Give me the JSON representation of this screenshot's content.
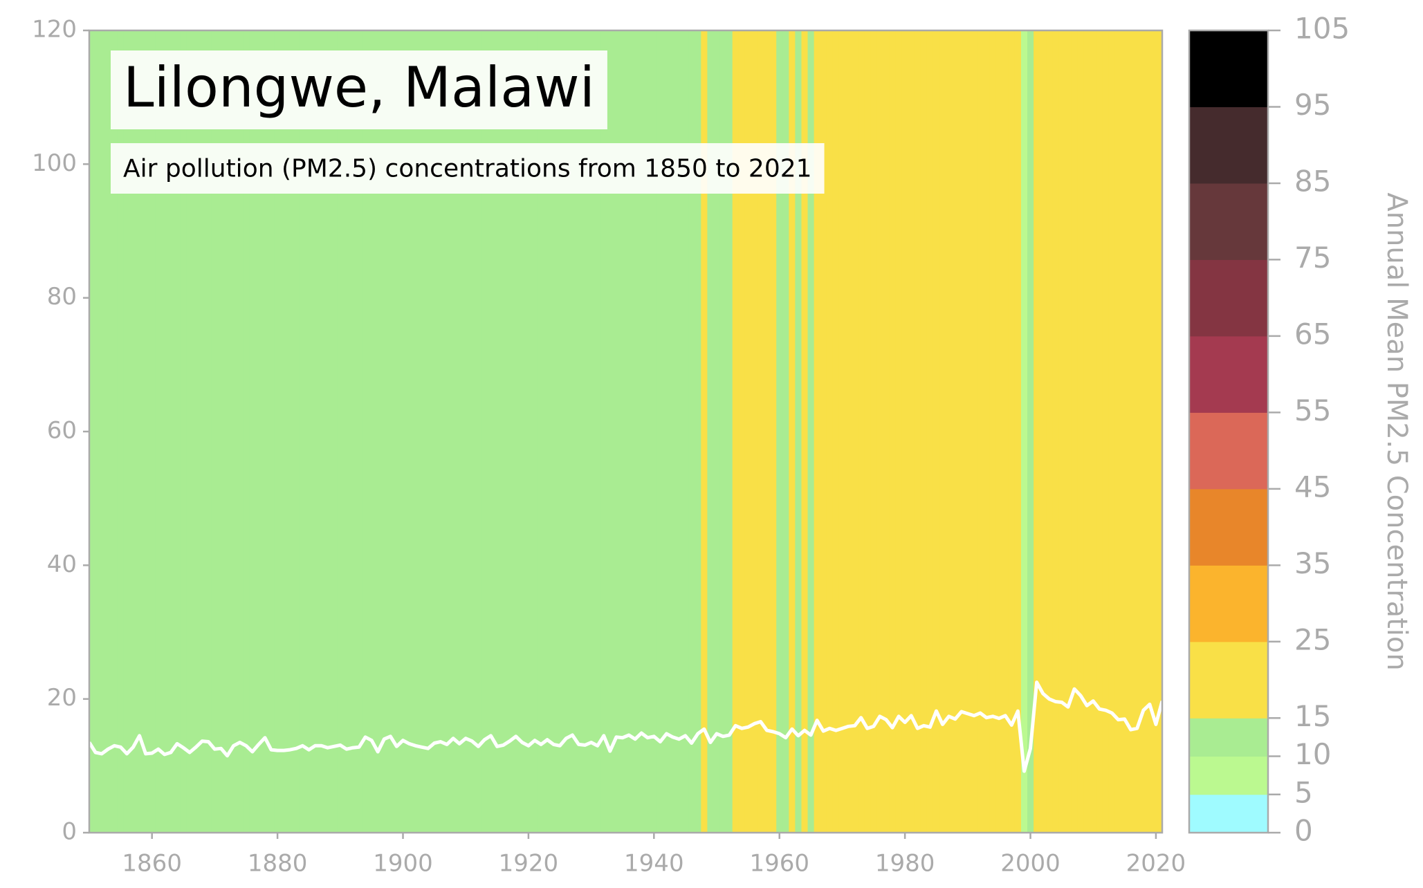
{
  "chart_data": {
    "type": "line",
    "title": "Lilongwe, Malawi",
    "subtitle": "Air pollution (PM2.5) concentrations from 1850 to 2021",
    "x": [
      1850,
      1851,
      1852,
      1853,
      1854,
      1855,
      1856,
      1857,
      1858,
      1859,
      1860,
      1861,
      1862,
      1863,
      1864,
      1865,
      1866,
      1867,
      1868,
      1869,
      1870,
      1871,
      1872,
      1873,
      1874,
      1875,
      1876,
      1877,
      1878,
      1879,
      1880,
      1881,
      1882,
      1883,
      1884,
      1885,
      1886,
      1887,
      1888,
      1889,
      1890,
      1891,
      1892,
      1893,
      1894,
      1895,
      1896,
      1897,
      1898,
      1899,
      1900,
      1901,
      1902,
      1903,
      1904,
      1905,
      1906,
      1907,
      1908,
      1909,
      1910,
      1911,
      1912,
      1913,
      1914,
      1915,
      1916,
      1917,
      1918,
      1919,
      1920,
      1921,
      1922,
      1923,
      1924,
      1925,
      1926,
      1927,
      1928,
      1929,
      1930,
      1931,
      1932,
      1933,
      1934,
      1935,
      1936,
      1937,
      1938,
      1939,
      1940,
      1941,
      1942,
      1943,
      1944,
      1945,
      1946,
      1947,
      1948,
      1949,
      1950,
      1951,
      1952,
      1953,
      1954,
      1955,
      1956,
      1957,
      1958,
      1959,
      1960,
      1961,
      1962,
      1963,
      1964,
      1965,
      1966,
      1967,
      1968,
      1969,
      1970,
      1971,
      1972,
      1973,
      1974,
      1975,
      1976,
      1977,
      1978,
      1979,
      1980,
      1981,
      1982,
      1983,
      1984,
      1985,
      1986,
      1987,
      1988,
      1989,
      1990,
      1991,
      1992,
      1993,
      1994,
      1995,
      1996,
      1997,
      1998,
      1999,
      2000,
      2001,
      2002,
      2003,
      2004,
      2005,
      2006,
      2007,
      2008,
      2009,
      2010,
      2011,
      2012,
      2013,
      2014,
      2015,
      2016,
      2017,
      2018,
      2019,
      2020,
      2021
    ],
    "values": [
      13.5,
      12,
      11.8,
      12.5,
      13,
      12.8,
      11.8,
      12.8,
      14.5,
      11.8,
      11.9,
      12.5,
      11.7,
      12,
      13.3,
      12.7,
      12,
      12.8,
      13.7,
      13.6,
      12.5,
      12.6,
      11.5,
      13,
      13.5,
      13,
      12.1,
      13.2,
      14.2,
      12.4,
      12.3,
      12.3,
      12.4,
      12.6,
      13,
      12.4,
      13,
      13,
      12.7,
      12.9,
      13.1,
      12.5,
      12.7,
      12.8,
      14.3,
      13.8,
      12.1,
      14,
      14.4,
      12.9,
      13.8,
      13.3,
      13,
      12.8,
      12.6,
      13.4,
      13.6,
      13.2,
      14.1,
      13.3,
      14.1,
      13.7,
      12.9,
      13.9,
      14.5,
      12.9,
      13.1,
      13.7,
      14.4,
      13.5,
      13,
      13.8,
      13.2,
      13.9,
      13.2,
      13,
      14.1,
      14.6,
      13.2,
      13.1,
      13.5,
      13,
      14.5,
      12.2,
      14.3,
      14.2,
      14.6,
      14,
      14.9,
      14.2,
      14.4,
      13.6,
      14.8,
      14.3,
      14,
      14.5,
      13.4,
      14.8,
      15.5,
      13.5,
      14.8,
      14.4,
      14.6,
      16,
      15.6,
      15.8,
      16.3,
      16.6,
      15.3,
      15.1,
      14.8,
      14.2,
      15.5,
      14.5,
      15.3,
      14.6,
      16.8,
      15.2,
      15.6,
      15.3,
      15.6,
      15.9,
      16,
      17.2,
      15.6,
      15.9,
      17.4,
      16.9,
      15.7,
      17.4,
      16.5,
      17.5,
      15.6,
      16,
      15.8,
      18.2,
      16.2,
      17.4,
      17,
      18.1,
      17.8,
      17.5,
      17.9,
      17.2,
      17.4,
      17.1,
      17.5,
      16.1,
      18.2,
      9.2,
      12.6,
      22.5,
      20.8,
      20,
      19.6,
      19.5,
      18.8,
      21.5,
      20.5,
      19,
      19.7,
      18.5,
      18.3,
      17.9,
      16.9,
      17,
      15.4,
      15.6,
      18.3,
      19.2,
      16.2,
      19.7
    ],
    "color": "#ffffff",
    "xlim": [
      1850,
      2021
    ],
    "xticks": [
      1860,
      1880,
      1900,
      1920,
      1940,
      1960,
      1980,
      2000,
      2020
    ],
    "ylim": [
      0,
      120
    ],
    "yticks": [
      0,
      20,
      40,
      60,
      80,
      100,
      120
    ],
    "colorbar": {
      "label": "Annual Mean PM2.5 Concentration",
      "ylim": [
        0,
        105
      ],
      "bounds": [
        0,
        5,
        10,
        15,
        25,
        35,
        45,
        55,
        65,
        75,
        85,
        95,
        105
      ],
      "colors": [
        "#9ffbff",
        "#bbf990",
        "#a9ec92",
        "#f9e047",
        "#fbb42d",
        "#e8862a",
        "#db6858",
        "#a43a50",
        "#843542",
        "#66383b",
        "#452b2d",
        "#000000"
      ]
    }
  }
}
